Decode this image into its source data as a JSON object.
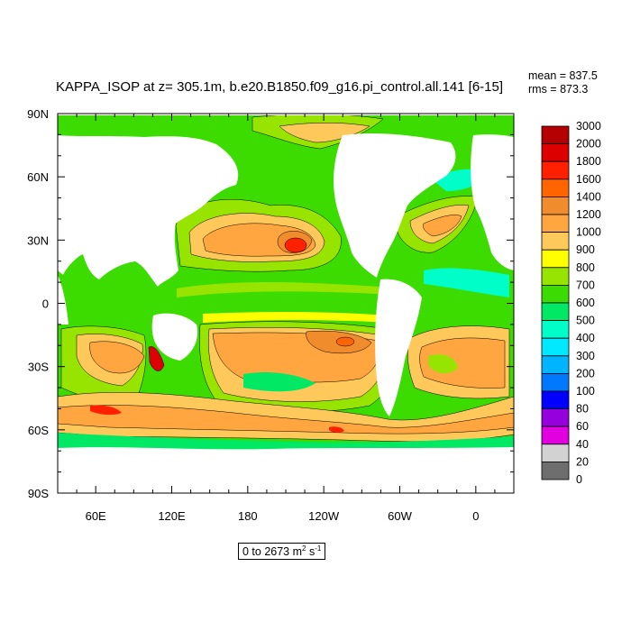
{
  "chart_data": {
    "type": "heatmap",
    "title": "KAPPA_ISOP at z= 305.1m, b.e20.B1850.f09_g16.pi_control.all.141 [6-15]",
    "stats": {
      "mean": "mean = 837.5",
      "rms": "rms = 873.3"
    },
    "range": {
      "prefix": "0 to 2673 m",
      "unit_exp1": "2",
      "mid": " s",
      "unit_exp2": "-1"
    },
    "x_tick_labels": [
      "60E",
      "120E",
      "180",
      "120W",
      "60W",
      "0"
    ],
    "y_tick_labels": [
      "90N",
      "60N",
      "30N",
      "0",
      "30S",
      "60S",
      "90S"
    ],
    "xlim": [
      30,
      390
    ],
    "ylim": [
      -90,
      90
    ],
    "colorbar": {
      "levels": [
        "3000",
        "2000",
        "1800",
        "1600",
        "1400",
        "1200",
        "1000",
        "900",
        "800",
        "700",
        "600",
        "500",
        "400",
        "300",
        "200",
        "100",
        "80",
        "60",
        "40",
        "20",
        "0"
      ],
      "colors": [
        "#b40000",
        "#dc0000",
        "#ff2000",
        "#ff6400",
        "#f08c2c",
        "#ffa640",
        "#ffc85a",
        "#ffff00",
        "#96e400",
        "#3cdc00",
        "#00e864",
        "#00ffc8",
        "#00e8ff",
        "#00b4ff",
        "#0078ff",
        "#0000ff",
        "#9600dc",
        "#e000e0",
        "#d2d2d2",
        "#6e6e6e"
      ]
    },
    "ocean_field_color_scale": [
      {
        "value": 600,
        "color": "#3cdc00"
      },
      {
        "value": 800,
        "color": "#96e400"
      },
      {
        "value": 1000,
        "color": "#ffff00"
      },
      {
        "value": 1200,
        "color": "#ffa640"
      },
      {
        "value": 1400,
        "color": "#f08c2c"
      },
      {
        "value": 2000,
        "color": "#dc0000"
      }
    ]
  }
}
